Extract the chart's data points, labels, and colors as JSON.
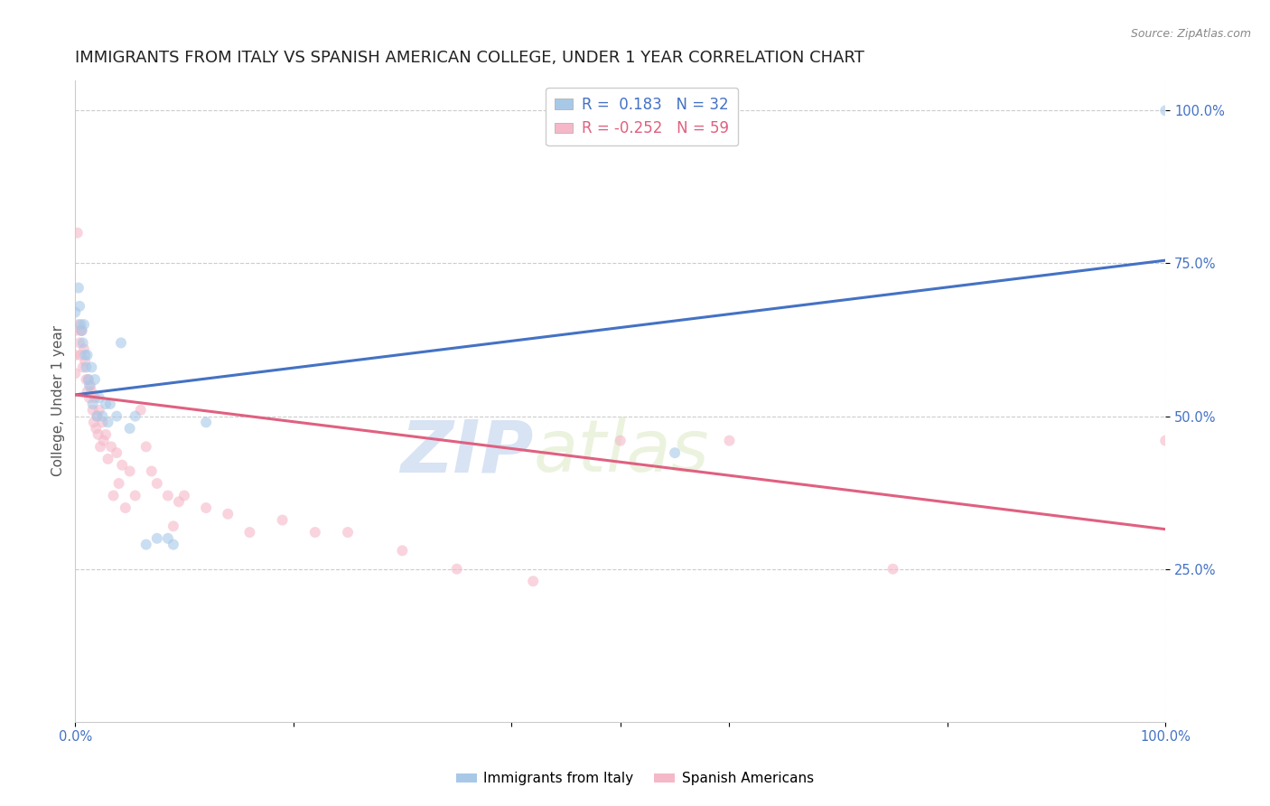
{
  "title": "IMMIGRANTS FROM ITALY VS SPANISH AMERICAN COLLEGE, UNDER 1 YEAR CORRELATION CHART",
  "source": "Source: ZipAtlas.com",
  "ylabel": "College, Under 1 year",
  "ytick_labels": [
    "25.0%",
    "50.0%",
    "75.0%",
    "100.0%"
  ],
  "legend_blue_R": "0.183",
  "legend_blue_N": "32",
  "legend_pink_R": "-0.252",
  "legend_pink_N": "59",
  "legend_label_blue": "Immigrants from Italy",
  "legend_label_pink": "Spanish Americans",
  "blue_color": "#A8C8E8",
  "pink_color": "#F5B8C8",
  "blue_line_color": "#4472C4",
  "pink_line_color": "#E06080",
  "watermark_zip": "ZIP",
  "watermark_atlas": "atlas",
  "blue_points_x": [
    0.0,
    0.003,
    0.004,
    0.005,
    0.006,
    0.007,
    0.008,
    0.009,
    0.01,
    0.011,
    0.012,
    0.013,
    0.015,
    0.016,
    0.018,
    0.02,
    0.022,
    0.025,
    0.028,
    0.03,
    0.032,
    0.038,
    0.042,
    0.05,
    0.055,
    0.065,
    0.075,
    0.085,
    0.09,
    0.12,
    0.55,
    1.0
  ],
  "blue_points_y": [
    0.67,
    0.71,
    0.68,
    0.65,
    0.64,
    0.62,
    0.65,
    0.6,
    0.58,
    0.6,
    0.56,
    0.55,
    0.58,
    0.52,
    0.56,
    0.5,
    0.53,
    0.5,
    0.52,
    0.49,
    0.52,
    0.5,
    0.62,
    0.48,
    0.5,
    0.29,
    0.3,
    0.3,
    0.29,
    0.49,
    0.44,
    1.0
  ],
  "pink_points_x": [
    0.0,
    0.0,
    0.0,
    0.002,
    0.003,
    0.004,
    0.005,
    0.005,
    0.006,
    0.007,
    0.008,
    0.009,
    0.01,
    0.011,
    0.012,
    0.013,
    0.014,
    0.015,
    0.016,
    0.017,
    0.018,
    0.019,
    0.02,
    0.021,
    0.022,
    0.023,
    0.025,
    0.026,
    0.028,
    0.03,
    0.033,
    0.035,
    0.038,
    0.04,
    0.043,
    0.046,
    0.05,
    0.055,
    0.06,
    0.065,
    0.07,
    0.075,
    0.085,
    0.09,
    0.095,
    0.1,
    0.12,
    0.14,
    0.16,
    0.19,
    0.22,
    0.25,
    0.3,
    0.35,
    0.42,
    0.5,
    0.6,
    0.75,
    1.0
  ],
  "pink_points_y": [
    0.64,
    0.6,
    0.57,
    0.8,
    0.65,
    0.62,
    0.64,
    0.6,
    0.64,
    0.58,
    0.61,
    0.59,
    0.56,
    0.54,
    0.56,
    0.53,
    0.55,
    0.54,
    0.51,
    0.49,
    0.53,
    0.48,
    0.5,
    0.47,
    0.51,
    0.45,
    0.49,
    0.46,
    0.47,
    0.43,
    0.45,
    0.37,
    0.44,
    0.39,
    0.42,
    0.35,
    0.41,
    0.37,
    0.51,
    0.45,
    0.41,
    0.39,
    0.37,
    0.32,
    0.36,
    0.37,
    0.35,
    0.34,
    0.31,
    0.33,
    0.31,
    0.31,
    0.28,
    0.25,
    0.23,
    0.46,
    0.46,
    0.25,
    0.46
  ],
  "blue_line_y_start": 0.535,
  "blue_line_y_end": 0.755,
  "pink_line_y_start": 0.535,
  "pink_line_y_end": 0.315,
  "xmin": 0.0,
  "xmax": 1.0,
  "ymin": 0.0,
  "ymax": 1.05,
  "grid_color": "#CCCCCC",
  "background_color": "#FFFFFF",
  "title_fontsize": 13,
  "axis_label_fontsize": 11,
  "tick_fontsize": 10.5,
  "source_fontsize": 9,
  "point_size": 75,
  "point_alpha": 0.6,
  "line_width": 2.2
}
